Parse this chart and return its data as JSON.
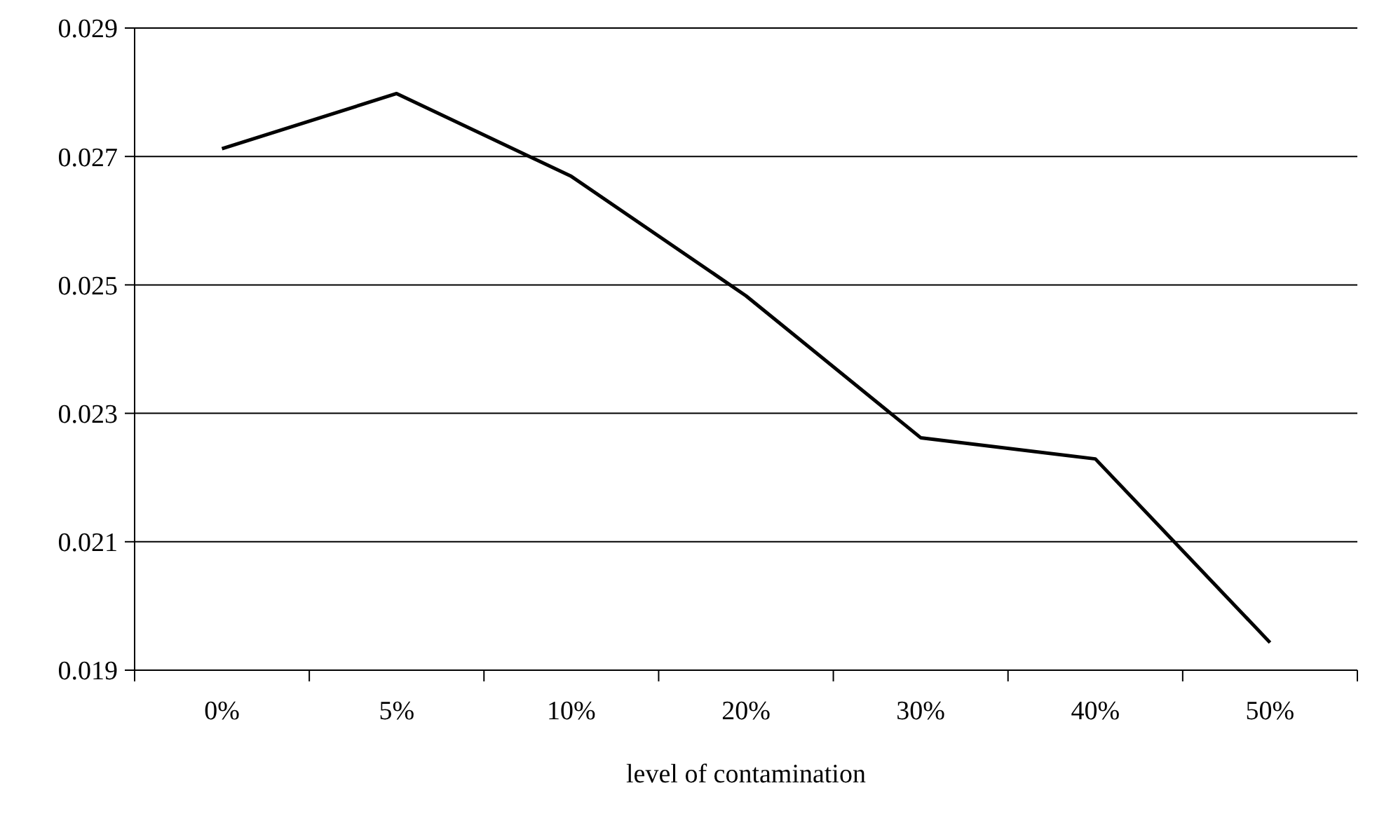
{
  "chart_data": {
    "type": "line",
    "xlabel": "level of contamination",
    "categories": [
      "0%",
      "5%",
      "10%",
      "20%",
      "30%",
      "40%",
      "50%"
    ],
    "series": [
      {
        "color": "#000000",
        "values": [
          0.02712,
          0.02798,
          0.02669,
          0.02483,
          0.02262,
          0.02229,
          0.01943
        ]
      }
    ],
    "ylim": [
      0.019,
      0.029
    ],
    "yticks": [
      {
        "value": 0.019,
        "label": "0.019"
      },
      {
        "value": 0.021,
        "label": "0.021"
      },
      {
        "value": 0.023,
        "label": "0.023"
      },
      {
        "value": 0.025,
        "label": "0.025"
      },
      {
        "value": 0.027,
        "label": "0.027"
      },
      {
        "value": 0.029,
        "label": "0.029"
      }
    ],
    "grid": "y",
    "marker": "none",
    "line_style": "solid"
  }
}
